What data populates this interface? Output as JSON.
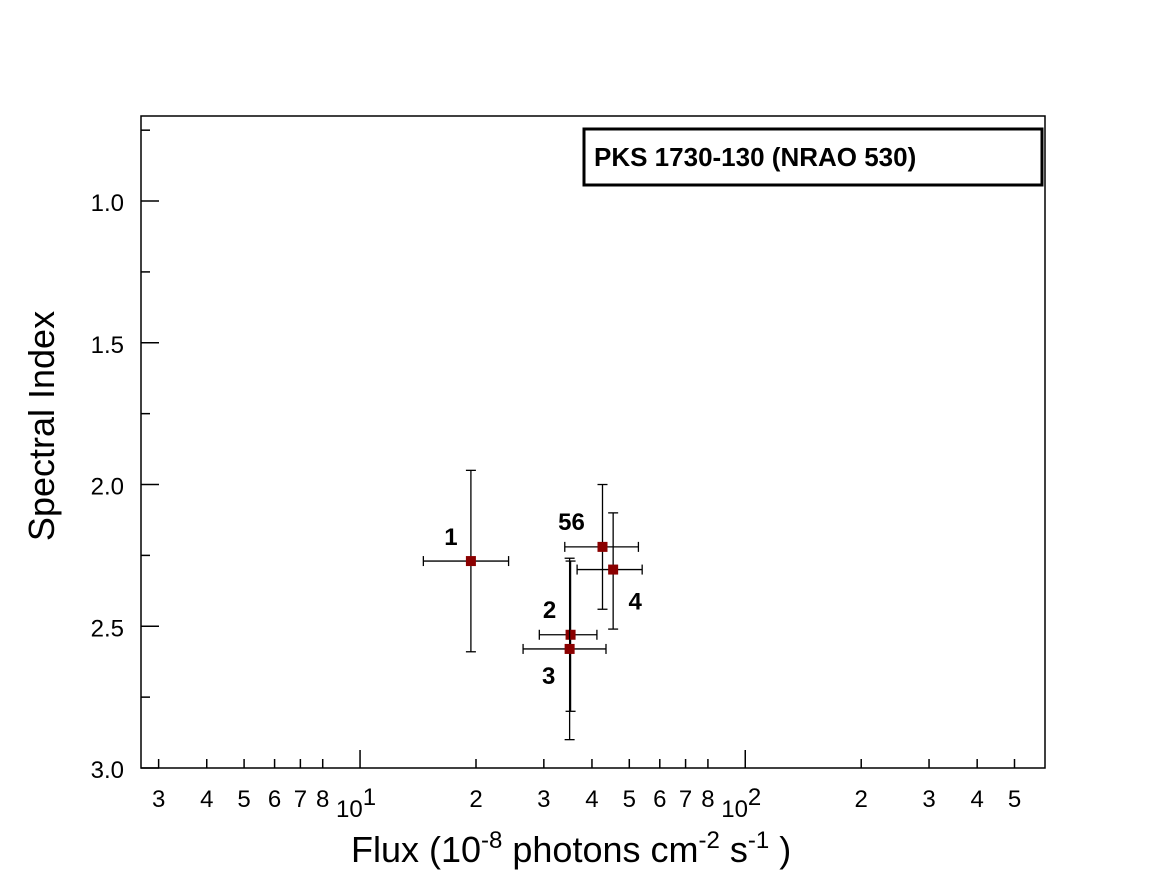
{
  "chart_data": {
    "type": "scatter",
    "title": "",
    "legend_text": "PKS 1730-130 (NRAO 530)",
    "legend_position": "top-right",
    "xlabel": {
      "main": "Flux  (10",
      "exp1": "-8",
      "mid1": " photons  cm",
      "exp2": "-2",
      "mid2": " s",
      "exp3": "-1",
      "end": " )"
    },
    "ylabel": "Spectral Index",
    "x_scale": "log",
    "xlim": [
      2.7,
      600
    ],
    "ylim": [
      3.0,
      0.7
    ],
    "y_inverted": true,
    "grid": false,
    "x_ticks": [
      {
        "value": 3,
        "label": "3"
      },
      {
        "value": 4,
        "label": "4"
      },
      {
        "value": 5,
        "label": "5"
      },
      {
        "value": 6,
        "label": "6"
      },
      {
        "value": 7,
        "label": "7"
      },
      {
        "value": 8,
        "label": "8"
      },
      {
        "value": 10,
        "label": "10",
        "exp": "1"
      },
      {
        "value": 20,
        "label": "2"
      },
      {
        "value": 30,
        "label": "3"
      },
      {
        "value": 40,
        "label": "4"
      },
      {
        "value": 50,
        "label": "5"
      },
      {
        "value": 60,
        "label": "6"
      },
      {
        "value": 70,
        "label": "7"
      },
      {
        "value": 80,
        "label": "8"
      },
      {
        "value": 100,
        "label": "10",
        "exp": "2"
      },
      {
        "value": 200,
        "label": "2"
      },
      {
        "value": 300,
        "label": "3"
      },
      {
        "value": 400,
        "label": "4"
      },
      {
        "value": 500,
        "label": "5"
      }
    ],
    "y_ticks": [
      {
        "value": 1.0,
        "label": "1.0"
      },
      {
        "value": 1.5,
        "label": "1.5"
      },
      {
        "value": 2.0,
        "label": "2.0"
      },
      {
        "value": 2.5,
        "label": "2.5"
      },
      {
        "value": 3.0,
        "label": "3.0"
      }
    ],
    "y_minor_ticks": [
      0.75,
      1.25,
      1.75,
      2.25,
      2.75
    ],
    "marker_color": "#8b0000",
    "points": [
      {
        "label": "1",
        "x": 19.4,
        "y": 2.27,
        "x_lo": 14.6,
        "x_hi": 24.3,
        "y_lo": 1.95,
        "y_hi": 2.59,
        "label_pos": "upper-left"
      },
      {
        "label": "2",
        "x": 35.2,
        "y": 2.53,
        "x_lo": 29.2,
        "x_hi": 41.2,
        "y_lo": 2.27,
        "y_hi": 2.8,
        "label_pos": "upper-left"
      },
      {
        "label": "3",
        "x": 35.0,
        "y": 2.58,
        "x_lo": 26.5,
        "x_hi": 43.5,
        "y_lo": 2.26,
        "y_hi": 2.9,
        "label_pos": "lower-left"
      },
      {
        "label": "4",
        "x": 45.4,
        "y": 2.3,
        "x_lo": 36.6,
        "x_hi": 54.0,
        "y_lo": 2.1,
        "y_hi": 2.51,
        "label_pos": "lower-right"
      },
      {
        "label": "56",
        "x": 42.6,
        "y": 2.22,
        "x_lo": 34.0,
        "x_hi": 52.8,
        "y_lo": 2.0,
        "y_hi": 2.44,
        "label_pos": "upper-left"
      }
    ]
  }
}
